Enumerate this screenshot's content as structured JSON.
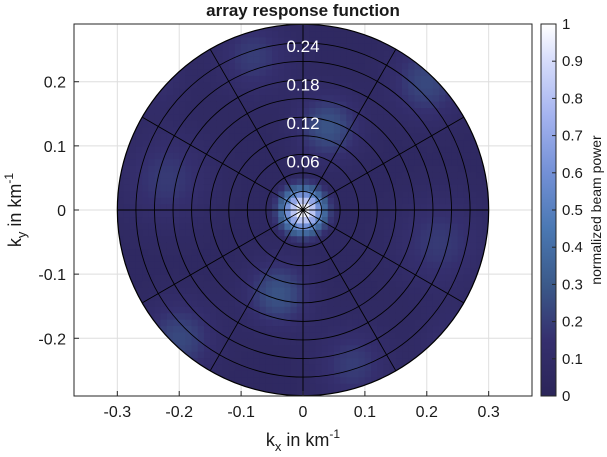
{
  "chart_data": {
    "type": "heatmap",
    "subtype": "polar array response",
    "title": "array response function",
    "xlabel": {
      "base": "k",
      "sub": "x",
      "mid": " in km",
      "sup": "-1"
    },
    "ylabel": {
      "base": "k",
      "sub": "y",
      "mid": " in km",
      "sup": "-1"
    },
    "xlim": [
      -0.37,
      0.37
    ],
    "ylim": [
      -0.29,
      0.29
    ],
    "x_ticks": [
      -0.3,
      -0.2,
      -0.1,
      0,
      0.1,
      0.2,
      0.3
    ],
    "x_tick_labels": [
      "-0.3",
      "-0.2",
      "-0.1",
      "0",
      "0.1",
      "0.2",
      "0.3"
    ],
    "y_ticks": [
      0.2,
      0.1,
      0,
      -0.1,
      -0.2
    ],
    "y_tick_labels": [
      "0.2",
      "0.1",
      "0",
      "-0.1",
      "-0.2"
    ],
    "grid": true,
    "polar_extent": 0.3,
    "polar_circle_radii": [
      0.03,
      0.06,
      0.09,
      0.12,
      0.15,
      0.18,
      0.21,
      0.24,
      0.27,
      0.3
    ],
    "polar_spoke_angles_deg": [
      0,
      30,
      60,
      90,
      120,
      150,
      180,
      210,
      240,
      270,
      300,
      330
    ],
    "ring_labels": [
      {
        "r": 0.06,
        "text": "0.06"
      },
      {
        "r": 0.12,
        "text": "0.12"
      },
      {
        "r": 0.18,
        "text": "0.18"
      },
      {
        "r": 0.24,
        "text": "0.24"
      }
    ],
    "colorbar": {
      "label": "normalized beam power",
      "range": [
        0,
        1
      ],
      "ticks": [
        0,
        0.1,
        0.2,
        0.3,
        0.4,
        0.5,
        0.6,
        0.7,
        0.8,
        0.9,
        1
      ],
      "tick_labels": [
        "0",
        "0.1",
        "0.2",
        "0.3",
        "0.4",
        "0.5",
        "0.6",
        "0.7",
        "0.8",
        "0.9",
        "1"
      ],
      "colormap": [
        [
          0,
          "#2b2559"
        ],
        [
          0.15,
          "#352f6e"
        ],
        [
          0.3,
          "#3b5a8a"
        ],
        [
          0.45,
          "#4a78b3"
        ],
        [
          0.6,
          "#7390d6"
        ],
        [
          0.75,
          "#a3b2ef"
        ],
        [
          0.9,
          "#d6dcfb"
        ],
        [
          1,
          "#ffffff"
        ]
      ]
    },
    "field": {
      "main_peak": {
        "x": 0,
        "y": 0,
        "value": 1.0,
        "width": 0.025
      },
      "side_lobes": [
        {
          "x": 0.04,
          "y": 0.13,
          "value": 0.22,
          "width": 0.035
        },
        {
          "x": -0.04,
          "y": -0.13,
          "value": 0.22,
          "width": 0.035
        },
        {
          "x": 0.2,
          "y": 0.2,
          "value": 0.18,
          "width": 0.04
        },
        {
          "x": -0.2,
          "y": -0.2,
          "value": 0.18,
          "width": 0.04
        },
        {
          "x": 0.22,
          "y": -0.05,
          "value": 0.13,
          "width": 0.05
        },
        {
          "x": -0.22,
          "y": 0.05,
          "value": 0.13,
          "width": 0.05
        },
        {
          "x": -0.08,
          "y": 0.24,
          "value": 0.14,
          "width": 0.04
        },
        {
          "x": 0.08,
          "y": -0.24,
          "value": 0.14,
          "width": 0.04
        },
        {
          "x": 0.25,
          "y": -0.22,
          "value": 0.12,
          "width": 0.04
        },
        {
          "x": -0.25,
          "y": 0.22,
          "value": 0.12,
          "width": 0.04
        }
      ],
      "background": 0.06
    }
  }
}
